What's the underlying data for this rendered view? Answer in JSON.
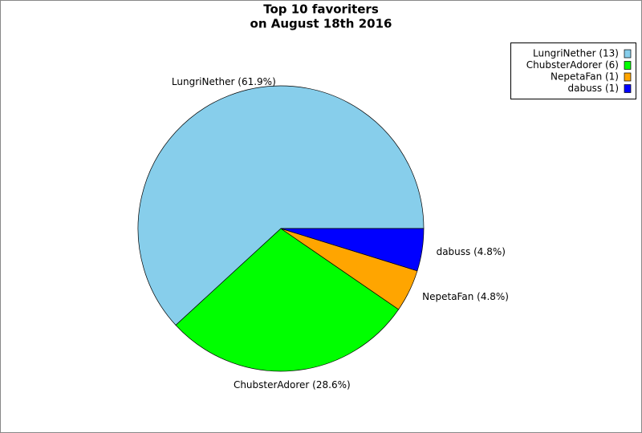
{
  "chart_data": {
    "type": "pie",
    "title": "Top 10 favoriters",
    "subtitle": "on August 18th 2016",
    "values": [
      61.9,
      28.6,
      4.8,
      4.8
    ],
    "value_labels": [
      "LungriNether (61.9%)",
      "ChubsterAdorer (28.6%)",
      "NepetaFan (4.8%)",
      "dabuss (4.8%)"
    ],
    "legend_labels": [
      "LungriNether (13)",
      "ChubsterAdorer (6)",
      "NepetaFan (1)",
      "dabuss (1)"
    ],
    "colors": [
      "#87ceeb",
      "#00ff00",
      "#ffa500",
      "#0000ff"
    ],
    "legend": "upper right"
  }
}
